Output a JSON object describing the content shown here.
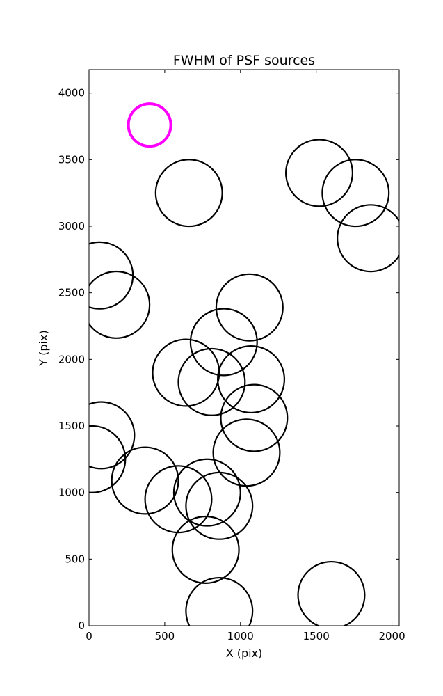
{
  "chart_data": {
    "type": "scatter",
    "title": "FWHM of PSF sources",
    "xlabel": "X (pix)",
    "ylabel": "Y (pix)",
    "xlim": [
      0,
      2048
    ],
    "ylim": [
      0,
      4176
    ],
    "xticks": [
      0,
      500,
      1000,
      1500,
      2000
    ],
    "yticks": [
      0,
      500,
      1000,
      1500,
      2000,
      2500,
      3000,
      3500,
      4000
    ],
    "grid": false,
    "marker": "circle-outline",
    "radius_units": "pix",
    "series": [
      {
        "color": "#000000",
        "points": [
          {
            "x": 660,
            "y": 3250,
            "r": 220
          },
          {
            "x": 1520,
            "y": 3400,
            "r": 220
          },
          {
            "x": 1760,
            "y": 3250,
            "r": 220
          },
          {
            "x": 1860,
            "y": 2910,
            "r": 220
          },
          {
            "x": 70,
            "y": 2630,
            "r": 220
          },
          {
            "x": 180,
            "y": 2410,
            "r": 220
          },
          {
            "x": 1060,
            "y": 2390,
            "r": 220
          },
          {
            "x": 890,
            "y": 2130,
            "r": 220
          },
          {
            "x": 640,
            "y": 1900,
            "r": 220
          },
          {
            "x": 810,
            "y": 1830,
            "r": 220
          },
          {
            "x": 1070,
            "y": 1850,
            "r": 220
          },
          {
            "x": 1090,
            "y": 1560,
            "r": 220
          },
          {
            "x": 80,
            "y": 1430,
            "r": 220
          },
          {
            "x": 20,
            "y": 1250,
            "r": 220
          },
          {
            "x": 1040,
            "y": 1300,
            "r": 220
          },
          {
            "x": 370,
            "y": 1090,
            "r": 220
          },
          {
            "x": 590,
            "y": 950,
            "r": 220
          },
          {
            "x": 780,
            "y": 1000,
            "r": 220
          },
          {
            "x": 860,
            "y": 900,
            "r": 220
          },
          {
            "x": 770,
            "y": 570,
            "r": 220
          },
          {
            "x": 860,
            "y": 110,
            "r": 220
          },
          {
            "x": 1600,
            "y": 230,
            "r": 220
          }
        ]
      },
      {
        "color": "#ff00ff",
        "points": [
          {
            "x": 400,
            "y": 3760,
            "r": 140
          }
        ]
      }
    ]
  }
}
